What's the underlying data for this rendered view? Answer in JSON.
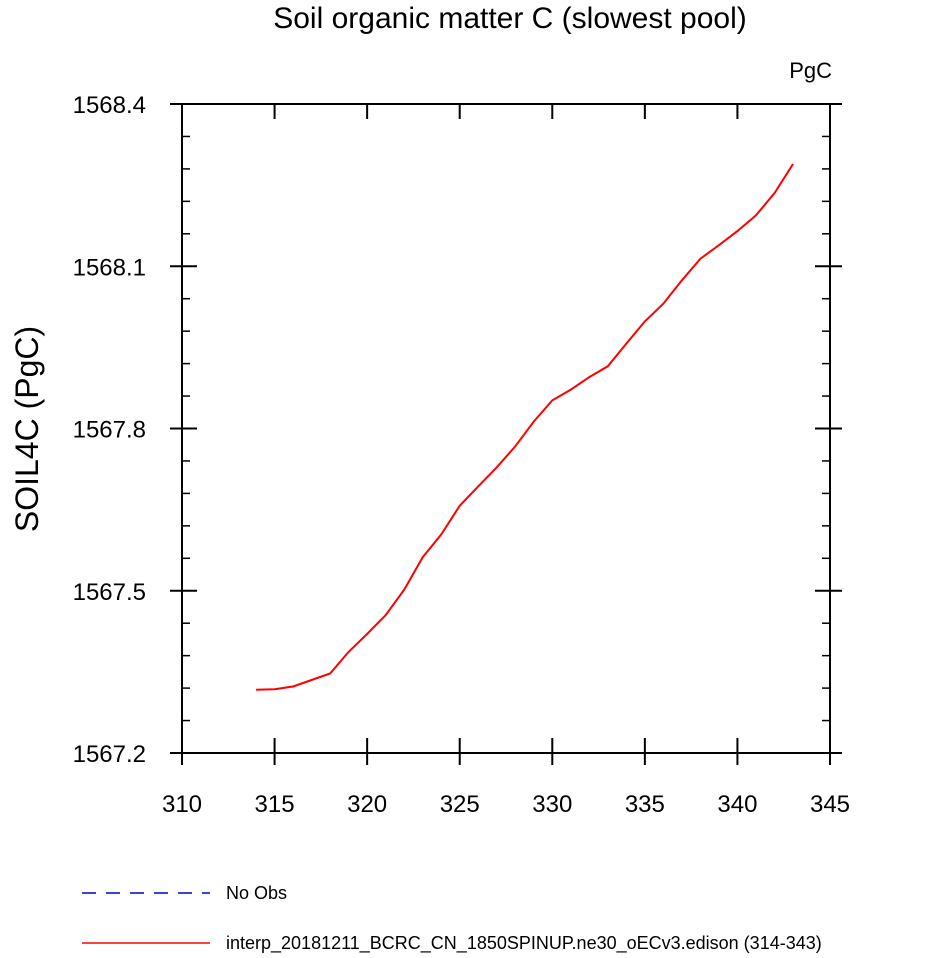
{
  "chart_data": {
    "type": "line",
    "title": "Soil organic matter C (slowest pool)",
    "units_label": "PgC",
    "xlabel": "",
    "ylabel": "SOIL4C  (PgC)",
    "xlim": [
      310,
      345
    ],
    "ylim": [
      1567.2,
      1568.4
    ],
    "x_ticks": [
      310,
      315,
      320,
      325,
      330,
      335,
      340,
      345
    ],
    "x_tick_labels": [
      "310",
      "315",
      "320",
      "325",
      "330",
      "335",
      "340",
      "345"
    ],
    "y_ticks": [
      1567.2,
      1567.5,
      1567.8,
      1568.1,
      1568.4
    ],
    "y_tick_labels": [
      "1567.2",
      "1567.5",
      "1567.8",
      "1568.1",
      "1568.4"
    ],
    "grid": false,
    "legend_position": "bottom",
    "series": [
      {
        "name": "No Obs",
        "color": "#0000cc",
        "dash": "dashed",
        "x": [],
        "y": []
      },
      {
        "name": "interp_20181211_BCRC_CN_1850SPINUP.ne30_oECv3.edison (314-343)",
        "color": "#ff0000",
        "dash": "solid",
        "x": [
          314,
          315,
          316,
          317,
          318,
          319,
          320,
          321,
          322,
          323,
          324,
          325,
          326,
          327,
          328,
          329,
          330,
          331,
          332,
          333,
          334,
          335,
          336,
          337,
          338,
          339,
          340,
          341,
          342,
          343
        ],
        "y": [
          1567.317,
          1567.318,
          1567.323,
          1567.335,
          1567.347,
          1567.387,
          1567.42,
          1567.455,
          1567.502,
          1567.562,
          1567.604,
          1567.657,
          1567.693,
          1567.728,
          1567.767,
          1567.813,
          1567.852,
          1567.872,
          1567.895,
          1567.915,
          1567.957,
          1567.998,
          1568.031,
          1568.074,
          1568.114,
          1568.139,
          1568.165,
          1568.194,
          1568.235,
          1568.289
        ]
      }
    ]
  }
}
